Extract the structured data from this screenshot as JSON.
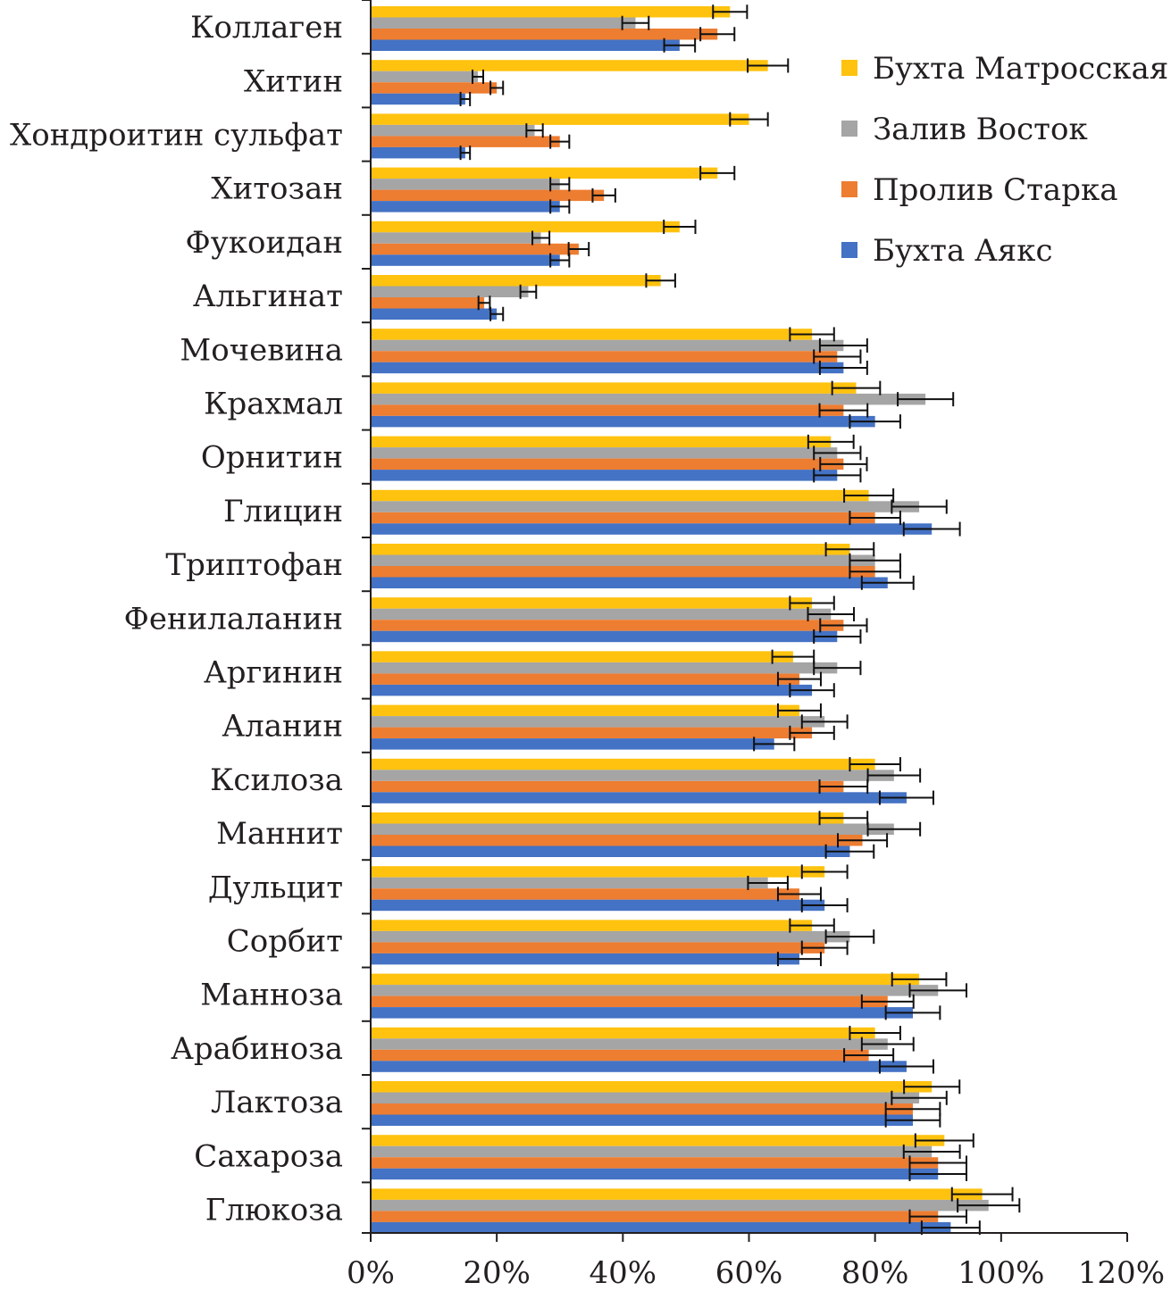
{
  "chart_data": {
    "type": "bar",
    "orientation": "horizontal",
    "title": "",
    "xlabel": "",
    "ylabel": "",
    "xlim": [
      0,
      120
    ],
    "x_ticks": [
      0,
      20,
      40,
      60,
      80,
      100,
      120
    ],
    "x_tick_labels": [
      "0%",
      "20%",
      "40%",
      "60%",
      "80%",
      "100%",
      "120%"
    ],
    "grid": false,
    "legend_position": "top-right",
    "categories": [
      "Коллаген",
      "Хитин",
      "Хондроитин сульфат",
      "Хитозан",
      "Фукоидан",
      "Альгинат",
      "Мочевина",
      "Крахмал",
      "Орнитин",
      "Глицин",
      "Триптофан",
      "Фенилаланин",
      "Аргинин",
      "Аланин",
      "Ксилоза",
      "Маннит",
      "Дульцит",
      "Сорбит",
      "Манноза",
      "Арабиноза",
      "Лактоза",
      "Сахароза",
      "Глюкоза"
    ],
    "series": [
      {
        "name": "Бухта Матросская",
        "color": "#ffc20e",
        "values": [
          57,
          63,
          60,
          55,
          49,
          46,
          70,
          77,
          73,
          79,
          76,
          70,
          67,
          68,
          80,
          75,
          72,
          70,
          87,
          80,
          89,
          91,
          97
        ],
        "errors": [
          2.7,
          3.2,
          3,
          2.7,
          2.5,
          2.3,
          3.5,
          3.8,
          3.6,
          3.9,
          3.8,
          3.5,
          3.3,
          3.4,
          4,
          3.8,
          3.6,
          3.5,
          4.3,
          4,
          4.4,
          4.6,
          4.8
        ]
      },
      {
        "name": "Залив Восток",
        "color": "#a5a5a5",
        "values": [
          42,
          17,
          26,
          30,
          27,
          25,
          75,
          88,
          74,
          87,
          80,
          73,
          74,
          72,
          83,
          83,
          63,
          76,
          90,
          82,
          87,
          89,
          98
        ]
      },
      {
        "name": "Пролив Старка",
        "color": "#ed7d31",
        "values": [
          55,
          20,
          30,
          37,
          33,
          18,
          74,
          75,
          75,
          80,
          80,
          75,
          68,
          70,
          75,
          78,
          68,
          72,
          82,
          79,
          86,
          90,
          90
        ],
        "errors": [
          2.7,
          1,
          1.5,
          1.8,
          1.6,
          0.9,
          3.7,
          3.8,
          3.7,
          4,
          4,
          3.7,
          3.4,
          3.5,
          3.8,
          3.9,
          3.4,
          3.6,
          4.1,
          3.9,
          4.3,
          4.5,
          4.5
        ]
      },
      {
        "name": "Бухта Аякс",
        "color": "#4472c4",
        "values": [
          49,
          15,
          15,
          30,
          30,
          20,
          75,
          80,
          74,
          89,
          82,
          74,
          70,
          64,
          85,
          76,
          72,
          68,
          86,
          85,
          86,
          90,
          92
        ]
      }
    ]
  }
}
